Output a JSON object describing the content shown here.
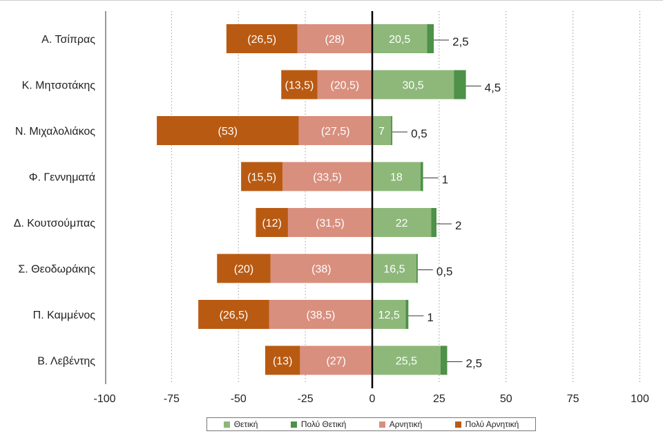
{
  "chart_data": {
    "type": "bar",
    "orientation": "horizontal-diverging",
    "categories": [
      "Α. Τσίπρας",
      "Κ. Μητσοτάκης",
      "Ν. Μιχαλολιάκος",
      "Φ. Γεννηματά",
      "Δ. Κουτσούμπας",
      "Σ. Θεοδωράκης",
      "Π. Καμμένος",
      "Β. Λεβέντης"
    ],
    "series": [
      {
        "name": "Θετική",
        "color": "#8db87a",
        "values": [
          20.5,
          30.5,
          7,
          18,
          22,
          16.5,
          12.5,
          25.5
        ],
        "labels": [
          "20,5",
          "30,5",
          "7",
          "18",
          "22",
          "16,5",
          "12,5",
          "25,5"
        ]
      },
      {
        "name": "Πολύ Θετική",
        "color": "#4e9148",
        "values": [
          2.5,
          4.5,
          0.5,
          1,
          2,
          0.5,
          1,
          2.5
        ],
        "labels": [
          "2,5",
          "4,5",
          "0,5",
          "1",
          "2",
          "0,5",
          "1",
          "2,5"
        ]
      },
      {
        "name": "Αρνητική",
        "color": "#d98f7e",
        "values": [
          -28,
          -20.5,
          -27.5,
          -33.5,
          -31.5,
          -38,
          -38.5,
          -27
        ],
        "labels": [
          "(28)",
          "(20,5)",
          "(27,5)",
          "(33,5)",
          "(31,5)",
          "(38)",
          "(38,5)",
          "(27)"
        ]
      },
      {
        "name": "Πολύ Αρνητική",
        "color": "#b95a12",
        "values": [
          -26.5,
          -13.5,
          -53,
          -15.5,
          -12,
          -20,
          -26.5,
          -13
        ],
        "labels": [
          "(26,5)",
          "(13,5)",
          "(53)",
          "(15,5)",
          "(12)",
          "(20)",
          "(26,5)",
          "(13)"
        ]
      }
    ],
    "xlim": [
      -100,
      100
    ],
    "xticks": [
      -100,
      -75,
      -50,
      -25,
      0,
      25,
      50,
      75,
      100
    ],
    "xtick_labels": [
      "-100",
      "-75",
      "-50",
      "-25",
      "0",
      "25",
      "50",
      "75",
      "100"
    ],
    "grid": "vertical-dotted",
    "legend": "bottom"
  }
}
